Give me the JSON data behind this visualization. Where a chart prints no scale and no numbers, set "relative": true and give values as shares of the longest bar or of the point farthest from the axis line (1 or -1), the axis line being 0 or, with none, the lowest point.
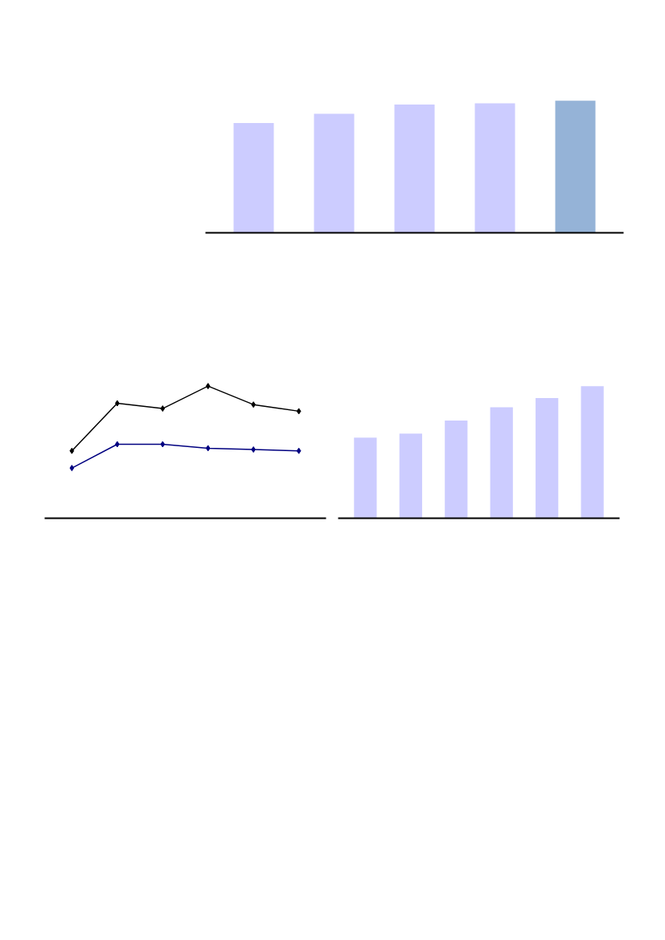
{
  "chart_data": [
    {
      "type": "bar",
      "relative": true,
      "categories": [
        null,
        null,
        null,
        null,
        null
      ],
      "values": [
        0.83,
        0.9,
        0.97,
        0.98,
        1
      ],
      "colors": [
        "#ccccff",
        "#ccccff",
        "#ccccff",
        "#ccccff",
        "#95b3d7"
      ]
    },
    {
      "type": "line",
      "relative": true,
      "marker": "diamond",
      "categories": [
        null,
        null,
        null,
        null,
        null,
        null
      ],
      "series": [
        {
          "color": "#000000",
          "values": [
            0.51,
            0.87,
            0.83,
            1,
            0.86,
            0.81
          ]
        },
        {
          "color": "#000080",
          "values": [
            0.38,
            0.56,
            0.56,
            0.53,
            0.52,
            0.51
          ]
        }
      ]
    },
    {
      "type": "bar",
      "relative": true,
      "categories": [
        null,
        null,
        null,
        null,
        null,
        null
      ],
      "values": [
        0.61,
        0.64,
        0.74,
        0.84,
        0.91,
        1
      ],
      "color": "#ccccff"
    }
  ]
}
